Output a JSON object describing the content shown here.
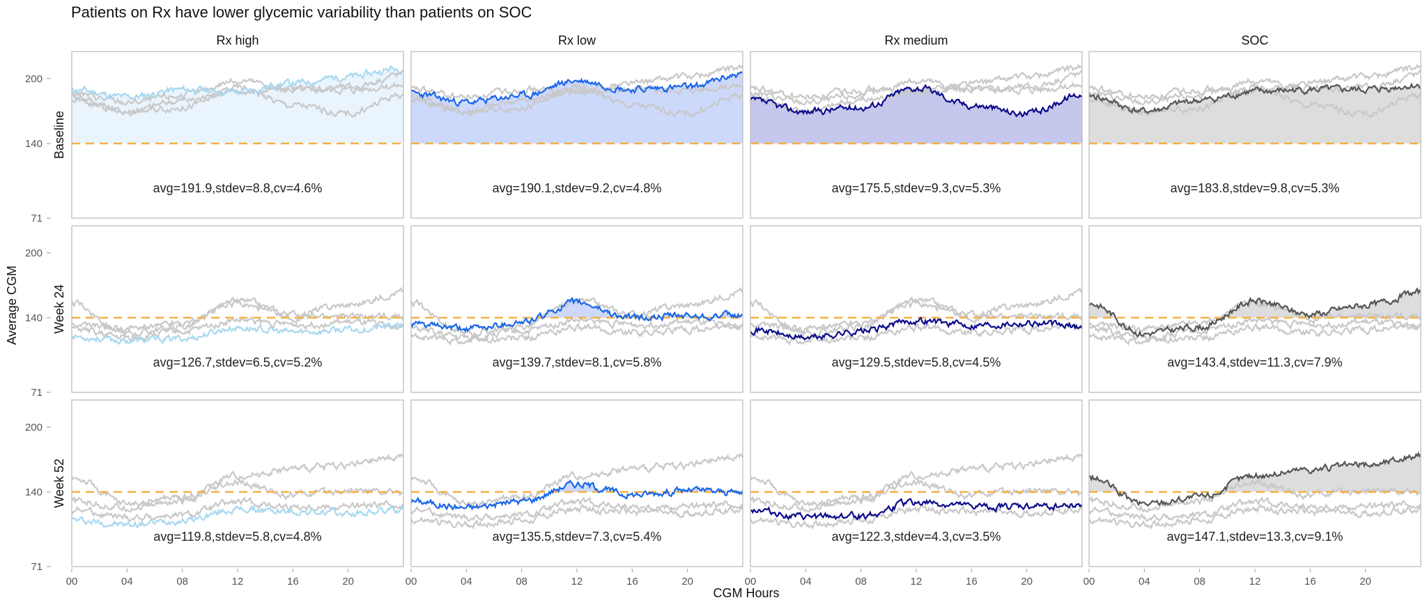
{
  "chart_data": {
    "type": "line",
    "title": "Patients on Rx have lower glycemic variability than patients on SOC",
    "xlabel": "CGM Hours",
    "ylabel": "Average CGM",
    "columns": [
      "Rx high",
      "Rx low",
      "Rx medium",
      "SOC"
    ],
    "rows": [
      "Baseline",
      "Week 24",
      "Week 52"
    ],
    "x_ticks": [
      "00",
      "04",
      "08",
      "12",
      "16",
      "20"
    ],
    "y_ticks": [
      71,
      140,
      200
    ],
    "ylim": [
      71,
      225
    ],
    "xlim": [
      0,
      24
    ],
    "reference_line": 140,
    "grid": false,
    "colors": {
      "Rx high": "#a8d8f0",
      "Rx low": "#1a66e8",
      "Rx medium": "#0b0b8a",
      "SOC": "#555555",
      "reference": "#f5b041",
      "background_series": "#c8c8c8"
    },
    "fills": {
      "Rx high": "#eaf4fd",
      "Rx low": "#cdd9fb",
      "Rx medium": "#c5c8ec",
      "SOC": "#dddddd"
    },
    "panels": [
      {
        "row": "Baseline",
        "col": "Rx high",
        "avg": 191.9,
        "label": "avg=191.9,stdev=8.8,cv=4.6%",
        "profile": [
          0,
          4,
          7,
          10,
          14,
          18,
          22,
          24
        ],
        "shape": [
          -2,
          -9,
          -2,
          -4,
          4,
          10,
          18
        ],
        "seed": 11
      },
      {
        "row": "Baseline",
        "col": "Rx low",
        "avg": 190.1,
        "label": "avg=190.1,stdev=9.2,cv=4.8%",
        "shape": [
          -4,
          -12,
          -6,
          8,
          0,
          2,
          14
        ],
        "seed": 23
      },
      {
        "row": "Baseline",
        "col": "Rx medium",
        "avg": 175.5,
        "label": "avg=175.5,stdev=9.3,cv=5.3%",
        "shape": [
          4,
          -6,
          -2,
          16,
          0,
          -8,
          10
        ],
        "seed": 37
      },
      {
        "row": "Baseline",
        "col": "SOC",
        "avg": 183.8,
        "label": "avg=183.8,stdev=9.8,cv=5.3%",
        "shape": [
          0,
          -14,
          -4,
          4,
          6,
          6,
          10
        ],
        "seed": 41
      },
      {
        "row": "Week 24",
        "col": "Rx high",
        "avg": 126.7,
        "label": "avg=126.7,stdev=6.5,cv=5.2%",
        "shape": [
          -4,
          -8,
          -6,
          4,
          0,
          2,
          6
        ],
        "seed": 53
      },
      {
        "row": "Week 24",
        "col": "Rx low",
        "avg": 139.7,
        "label": "avg=139.7,stdev=8.1,cv=5.8%",
        "shape": [
          -6,
          -10,
          -4,
          14,
          0,
          2,
          2
        ],
        "seed": 61
      },
      {
        "row": "Week 24",
        "col": "Rx medium",
        "avg": 129.5,
        "label": "avg=129.5,stdev=5.8,cv=4.5%",
        "shape": [
          0,
          -8,
          -2,
          8,
          4,
          6,
          2
        ],
        "seed": 71
      },
      {
        "row": "Week 24",
        "col": "SOC",
        "avg": 143.4,
        "label": "avg=143.4,stdev=11.3,cv=7.9%",
        "shape": [
          10,
          -18,
          -12,
          12,
          0,
          8,
          20
        ],
        "seed": 83
      },
      {
        "row": "Week 52",
        "col": "Rx high",
        "avg": 119.8,
        "label": "avg=119.8,stdev=5.8,cv=4.8%",
        "shape": [
          -6,
          -10,
          -6,
          4,
          2,
          0,
          4
        ],
        "seed": 97
      },
      {
        "row": "Week 52",
        "col": "Rx low",
        "avg": 135.5,
        "label": "avg=135.5,stdev=7.3,cv=5.4%",
        "shape": [
          -4,
          -10,
          -4,
          12,
          2,
          6,
          4
        ],
        "seed": 101
      },
      {
        "row": "Week 52",
        "col": "Rx medium",
        "avg": 122.3,
        "label": "avg=122.3,stdev=4.3,cv=3.5%",
        "shape": [
          2,
          -6,
          -4,
          8,
          4,
          4,
          6
        ],
        "seed": 113
      },
      {
        "row": "Week 52",
        "col": "SOC",
        "avg": 147.1,
        "label": "avg=147.1,stdev=13.3,cv=9.1%",
        "shape": [
          6,
          -18,
          -12,
          8,
          14,
          18,
          26
        ],
        "seed": 127
      }
    ]
  }
}
